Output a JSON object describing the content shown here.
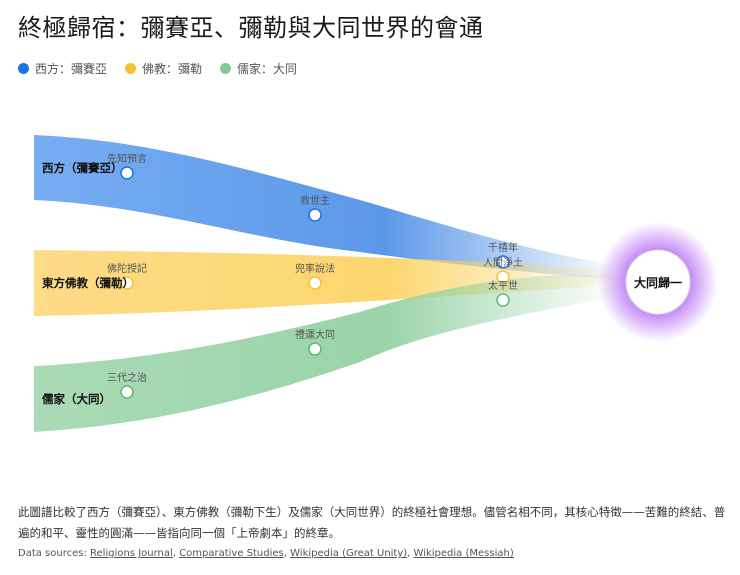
{
  "title": "終極歸宿：彌賽亞、彌勒與大同世界的會通",
  "legend": [
    {
      "label": "西方：彌賽亞",
      "color": "#1a73e8"
    },
    {
      "label": "佛教：彌勒",
      "color": "#fbc02d"
    },
    {
      "label": "儒家：大同",
      "color": "#81c995"
    }
  ],
  "streams": [
    {
      "label": "西方（彌賽亞）",
      "color": "#4a8ee6",
      "nodes": [
        "先知預言",
        "救世主",
        "千禧年"
      ]
    },
    {
      "label": "東方佛教（彌勒）",
      "color": "#fcd25e",
      "nodes": [
        "佛陀授記",
        "兜率說法",
        "人間淨土"
      ]
    },
    {
      "label": "儒家（大同）",
      "color": "#8fcf9f",
      "nodes": [
        "三代之治",
        "禮運大同",
        "太平世"
      ]
    }
  ],
  "destination": {
    "label": "大同歸一",
    "glow_color": "#b366f5"
  },
  "description": "此圖譜比較了西方（彌賽亞）、東方佛教（彌勒下生）及儒家（大同世界）的終極社會理想。儘管名相不同，其核心特徵——苦難的終結、普遍的和平、靈性的圓滿——皆指向同一個「上帝劇本」的終章。",
  "sources": {
    "prefix": "Data sources: ",
    "links": [
      "Religions Journal",
      "Comparative Studies",
      "Wikipedia (Great Unity)",
      "Wikipedia (Messiah)"
    ]
  }
}
